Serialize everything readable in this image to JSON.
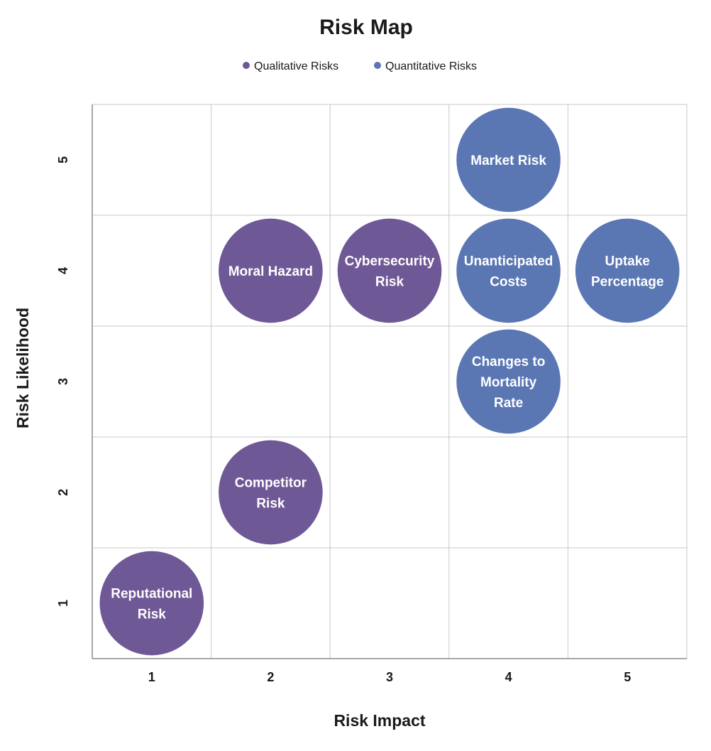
{
  "chart_data": {
    "type": "scatter",
    "title": "Risk Map",
    "xlabel": "Risk Impact",
    "ylabel": "Risk Likelihood",
    "xlim": [
      0.5,
      5.5
    ],
    "ylim": [
      0.5,
      5.5
    ],
    "x_ticks": [
      "1",
      "2",
      "3",
      "4",
      "5"
    ],
    "y_ticks": [
      "1",
      "2",
      "3",
      "4",
      "5"
    ],
    "grid": true,
    "legend": "top",
    "series": [
      {
        "name": "Qualitative Risks",
        "color": "#6f5896",
        "points": [
          {
            "x": 2,
            "y": 4,
            "label": "Moral Hazard"
          },
          {
            "x": 3,
            "y": 4,
            "label": "Cybersecurity Risk"
          },
          {
            "x": 2,
            "y": 2,
            "label": "Competitor Risk"
          },
          {
            "x": 1,
            "y": 1,
            "label": "Reputational Risk"
          }
        ]
      },
      {
        "name": "Quantitative Risks",
        "color": "#5a77b3",
        "points": [
          {
            "x": 4,
            "y": 5,
            "label": "Market Risk"
          },
          {
            "x": 4,
            "y": 4,
            "label": "Unanticipated Costs"
          },
          {
            "x": 5,
            "y": 4,
            "label": "Uptake Percentage"
          },
          {
            "x": 4,
            "y": 3,
            "label": "Changes to Mortality Rate"
          }
        ]
      }
    ]
  }
}
